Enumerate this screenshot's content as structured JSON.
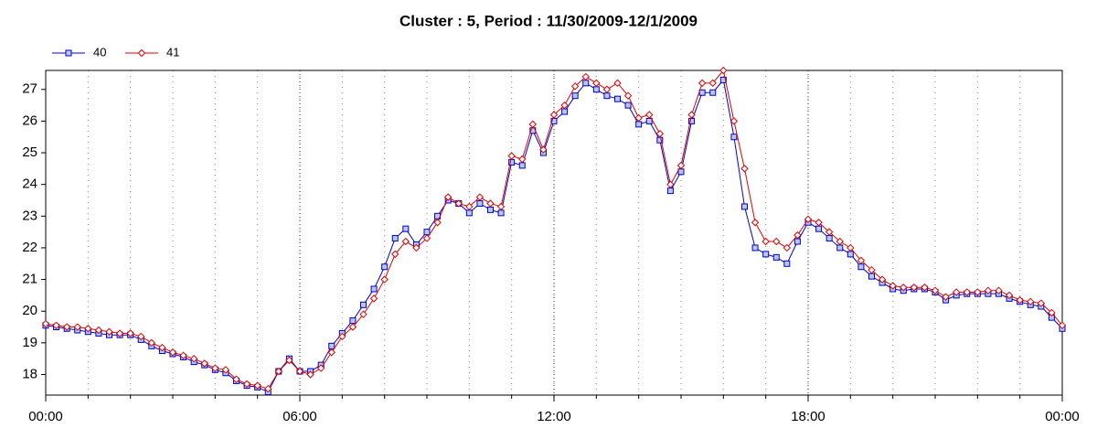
{
  "chart_data": {
    "type": "line",
    "title": "Cluster : 5, Period : 11/30/2009-12/1/2009",
    "x": [
      0,
      0.25,
      0.5,
      0.75,
      1,
      1.25,
      1.5,
      1.75,
      2,
      2.25,
      2.5,
      2.75,
      3,
      3.25,
      3.5,
      3.75,
      4,
      4.25,
      4.5,
      4.75,
      5,
      5.25,
      5.5,
      5.75,
      6,
      6.25,
      6.5,
      6.75,
      7,
      7.25,
      7.5,
      7.75,
      8,
      8.25,
      8.5,
      8.75,
      9,
      9.25,
      9.5,
      9.75,
      10,
      10.25,
      10.5,
      10.75,
      11,
      11.25,
      11.5,
      11.75,
      12,
      12.25,
      12.5,
      12.75,
      13,
      13.25,
      13.5,
      13.75,
      14,
      14.25,
      14.5,
      14.75,
      15,
      15.25,
      15.5,
      15.75,
      16,
      16.25,
      16.5,
      16.75,
      17,
      17.25,
      17.5,
      17.75,
      18,
      18.25,
      18.5,
      18.75,
      19,
      19.25,
      19.5,
      19.75,
      20,
      20.25,
      20.5,
      20.75,
      21,
      21.25,
      21.5,
      21.75,
      22,
      22.25,
      22.5,
      22.75,
      23,
      23.25,
      23.5,
      23.75,
      24
    ],
    "series": [
      {
        "name": "40",
        "color": "#0000cc",
        "marker": "square",
        "values": [
          19.55,
          19.5,
          19.45,
          19.4,
          19.35,
          19.3,
          19.25,
          19.25,
          19.25,
          19.1,
          18.9,
          18.75,
          18.65,
          18.55,
          18.4,
          18.3,
          18.15,
          18.05,
          17.8,
          17.65,
          17.6,
          17.45,
          18.1,
          18.5,
          18.1,
          18.1,
          18.3,
          18.9,
          19.3,
          19.7,
          20.2,
          20.7,
          21.4,
          22.3,
          22.6,
          22.1,
          22.5,
          23.0,
          23.5,
          23.4,
          23.1,
          23.4,
          23.2,
          23.1,
          24.7,
          24.6,
          25.7,
          25.0,
          26.0,
          26.3,
          26.8,
          27.2,
          27.0,
          26.8,
          26.7,
          26.5,
          25.9,
          26.0,
          25.4,
          23.8,
          24.4,
          26.0,
          26.9,
          26.9,
          27.3,
          25.5,
          23.3,
          22.0,
          21.8,
          21.7,
          21.5,
          22.2,
          22.8,
          22.6,
          22.3,
          22.0,
          21.8,
          21.4,
          21.1,
          20.9,
          20.7,
          20.65,
          20.7,
          20.7,
          20.6,
          20.35,
          20.5,
          20.55,
          20.55,
          20.55,
          20.55,
          20.4,
          20.3,
          20.2,
          20.15,
          19.8,
          19.45
        ]
      },
      {
        "name": "41",
        "color": "#dd0000",
        "marker": "diamond",
        "values": [
          19.6,
          19.55,
          19.5,
          19.5,
          19.45,
          19.4,
          19.35,
          19.3,
          19.3,
          19.2,
          19.0,
          18.85,
          18.7,
          18.6,
          18.5,
          18.35,
          18.2,
          18.15,
          17.85,
          17.7,
          17.65,
          17.55,
          18.1,
          18.45,
          18.1,
          18.0,
          18.2,
          18.7,
          19.2,
          19.5,
          19.9,
          20.4,
          21.0,
          21.8,
          22.2,
          22.0,
          22.3,
          22.8,
          23.6,
          23.4,
          23.3,
          23.6,
          23.4,
          23.3,
          24.9,
          24.8,
          25.9,
          25.1,
          26.2,
          26.5,
          27.1,
          27.4,
          27.2,
          27.0,
          27.2,
          26.8,
          26.1,
          26.2,
          25.6,
          24.0,
          24.6,
          26.2,
          27.2,
          27.2,
          27.6,
          26.0,
          24.5,
          22.8,
          22.2,
          22.2,
          22.0,
          22.4,
          22.9,
          22.8,
          22.5,
          22.2,
          22.0,
          21.6,
          21.3,
          21.0,
          20.8,
          20.75,
          20.75,
          20.75,
          20.65,
          20.45,
          20.6,
          20.6,
          20.6,
          20.65,
          20.65,
          20.5,
          20.35,
          20.3,
          20.25,
          19.95,
          19.55
        ]
      }
    ],
    "xlim": [
      0,
      24
    ],
    "xticks": [
      {
        "value": 0,
        "label": "00:00"
      },
      {
        "value": 6,
        "label": "06:00"
      },
      {
        "value": 12,
        "label": "12:00"
      },
      {
        "value": 18,
        "label": "18:00"
      },
      {
        "value": 24,
        "label": "00:00"
      }
    ],
    "ylim": [
      17.35,
      27.6
    ],
    "yticks": [
      18,
      19,
      20,
      21,
      22,
      23,
      24,
      25,
      26,
      27
    ],
    "grid": true,
    "legend": "top-left"
  }
}
